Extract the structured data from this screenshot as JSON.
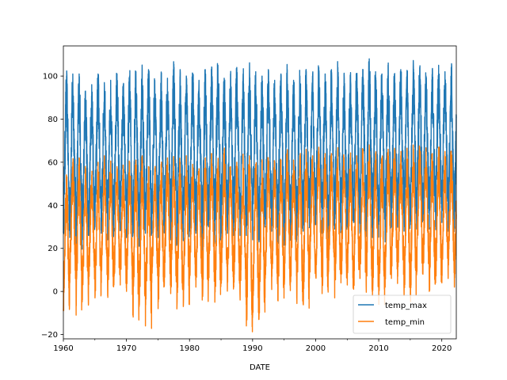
{
  "chart_data": {
    "type": "line",
    "title": "",
    "xlabel": "DATE",
    "ylabel": "",
    "xlim": [
      1960,
      2022.3
    ],
    "ylim": [
      -22,
      114
    ],
    "x_ticks": [
      1960,
      1970,
      1980,
      1990,
      2000,
      2010,
      2020
    ],
    "x_tick_labels": [
      "1960",
      "1970",
      "1980",
      "1990",
      "2000",
      "2010",
      "2020"
    ],
    "x_minor_ticks": [
      1965,
      1975,
      1985,
      1995,
      2005,
      2015
    ],
    "y_ticks": [
      -20,
      0,
      20,
      40,
      60,
      80,
      100
    ],
    "y_tick_labels": [
      "−20",
      "0",
      "20",
      "40",
      "60",
      "80",
      "100"
    ],
    "grid": false,
    "legend_position": "lower-right",
    "series": [
      {
        "name": "temp_max",
        "color": "#1f77b4",
        "annual_highs": [
          100,
          101,
          101,
          93,
          96,
          101,
          97,
          98,
          101,
          96,
          100,
          102,
          103,
          103,
          98,
          100,
          99,
          104,
          100,
          100,
          101,
          98,
          103,
          102,
          105,
          99,
          101,
          104,
          101,
          103,
          102,
          100,
          103,
          98,
          101,
          103,
          98,
          100,
          102,
          100,
          104,
          101,
          103,
          104,
          101,
          99,
          101,
          103,
          108,
          102,
          101,
          104,
          101,
          103,
          102,
          104,
          104,
          100,
          103,
          105,
          102,
          104,
          103
        ],
        "annual_lows": [
          28,
          25,
          22,
          24,
          26,
          30,
          27,
          24,
          28,
          29,
          25,
          26,
          21,
          27,
          28,
          25,
          30,
          24,
          22,
          26,
          28,
          27,
          21,
          30,
          25,
          28,
          27,
          30,
          26,
          26,
          24,
          23,
          31,
          28,
          25,
          22,
          24,
          26,
          28,
          30,
          31,
          27,
          24,
          29,
          28,
          30,
          32,
          27,
          29,
          25,
          31,
          23,
          30,
          32,
          28,
          31,
          29,
          33,
          29,
          30,
          32,
          28,
          31
        ]
      },
      {
        "name": "temp_min",
        "color": "#ff7f0e",
        "annual_highs": [
          53,
          60,
          62,
          56,
          54,
          60,
          63,
          60,
          58,
          57,
          60,
          61,
          63,
          58,
          57,
          59,
          62,
          61,
          60,
          63,
          59,
          57,
          62,
          64,
          60,
          64,
          58,
          60,
          61,
          63,
          59,
          60,
          62,
          60,
          61,
          64,
          61,
          63,
          66,
          62,
          67,
          64,
          64,
          65,
          62,
          62,
          63,
          66,
          68,
          64,
          62,
          66,
          65,
          63,
          65,
          66,
          67,
          65,
          64,
          67,
          65,
          65,
          64
        ],
        "annual_lows": [
          -9,
          4,
          -11,
          -4,
          4,
          -3,
          4,
          -2,
          3,
          3,
          0,
          -11,
          -7,
          -16,
          4,
          -8,
          4,
          -1,
          -7,
          -7,
          6,
          2,
          -4,
          5,
          -5,
          4,
          2,
          2,
          -4,
          -16,
          -10,
          -13,
          6,
          3,
          -2,
          3,
          4,
          -3,
          -6,
          6,
          7,
          -1,
          8,
          -3,
          4,
          3,
          1,
          6,
          1,
          -2,
          -6,
          2,
          6,
          7,
          -2,
          -3,
          8,
          8,
          0,
          4,
          4,
          8,
          3
        ]
      }
    ]
  }
}
